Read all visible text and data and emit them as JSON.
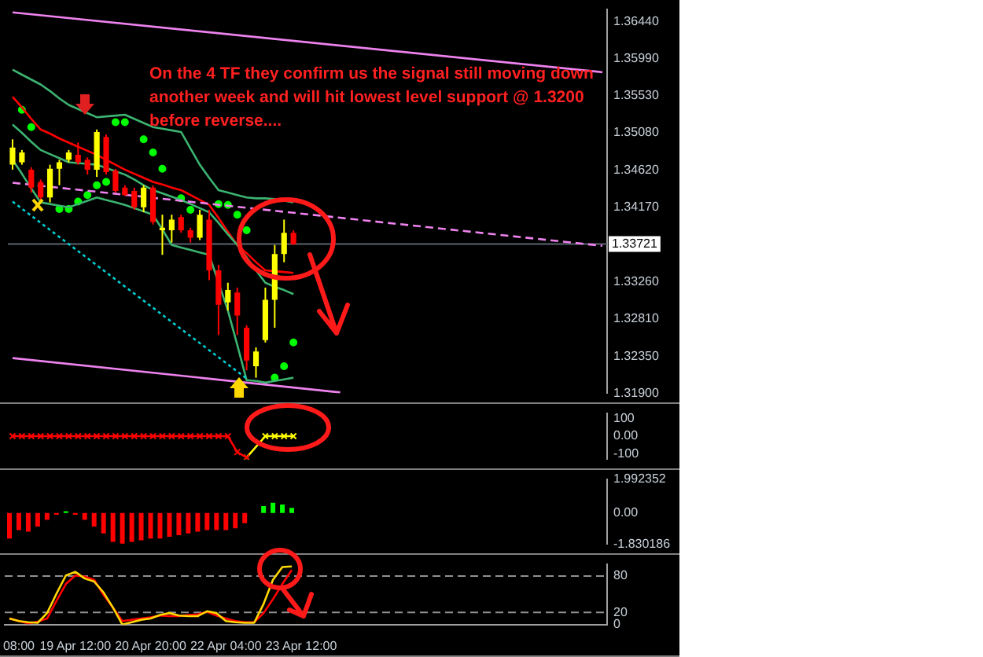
{
  "chart_data": [
    {
      "type": "candlestick",
      "categories": [
        null,
        null,
        null,
        null,
        null,
        null,
        null,
        null,
        null,
        null,
        null,
        null,
        null,
        null,
        null,
        null,
        null,
        null,
        null,
        null,
        null,
        null,
        null,
        null,
        null,
        null,
        null,
        null,
        null,
        null,
        null,
        null,
        null,
        null,
        null,
        null,
        null,
        null,
        null,
        null,
        null,
        null,
        null,
        null,
        null,
        null,
        null,
        null,
        null,
        null,
        null,
        null,
        null,
        null,
        null,
        null,
        null,
        null,
        null,
        null,
        null,
        null,
        null,
        null
      ],
      "ohlc": [
        [
          1.3469,
          1.35,
          1.3463,
          1.349
        ],
        [
          1.3472,
          1.3487,
          1.3469,
          1.3484
        ],
        [
          1.3463,
          1.3466,
          1.3435,
          1.3441
        ],
        [
          1.3448,
          1.3451,
          1.3426,
          1.3429
        ],
        [
          1.3429,
          1.3469,
          1.3423,
          1.3464
        ],
        [
          1.3464,
          1.3475,
          1.3444,
          1.3472
        ],
        [
          1.3475,
          1.3487,
          1.3472,
          1.3484
        ],
        [
          1.3481,
          1.3496,
          1.3469,
          1.3472
        ],
        [
          1.3475,
          1.3478,
          1.3457,
          1.3463
        ],
        [
          1.3463,
          1.3512,
          1.3454,
          1.3509
        ],
        [
          1.3503,
          1.3506,
          1.3457,
          1.346
        ],
        [
          1.3462,
          1.3464,
          1.3435,
          1.3437
        ],
        [
          1.3441,
          1.3444,
          1.3431,
          1.3432
        ],
        [
          1.3437,
          1.3441,
          1.3414,
          1.3417
        ],
        [
          1.3417,
          1.3444,
          1.3411,
          1.3441
        ],
        [
          1.3441,
          1.3444,
          1.3396,
          1.3399
        ],
        [
          1.3389,
          1.3408,
          1.3359,
          1.3392
        ],
        [
          1.3389,
          1.3408,
          1.3374,
          1.3402
        ],
        [
          1.3405,
          1.3408,
          1.3386,
          1.3389
        ],
        [
          1.3389,
          1.3392,
          1.3374,
          1.338
        ],
        [
          1.338,
          1.3414,
          1.3377,
          1.3408
        ],
        [
          1.3402,
          1.3414,
          1.3328,
          1.334
        ],
        [
          1.334,
          1.3347,
          1.3261,
          1.3298
        ],
        [
          1.3301,
          1.3325,
          1.3291,
          1.3316
        ],
        [
          1.3313,
          1.3319,
          1.3261,
          1.3285
        ],
        [
          1.327,
          1.3273,
          1.3218,
          1.323
        ],
        [
          1.3223,
          1.3246,
          1.3209,
          1.3241
        ],
        [
          1.3255,
          1.3319,
          1.3252,
          1.3304
        ],
        [
          1.3304,
          1.3371,
          1.327,
          1.336
        ],
        [
          1.336,
          1.3402,
          1.335,
          1.3386
        ],
        [
          1.3386,
          1.3389,
          1.3371,
          1.3372
        ],
        null,
        null,
        null,
        null,
        null,
        null,
        null,
        null,
        null,
        null,
        null,
        null,
        null,
        null,
        null,
        null,
        null,
        null,
        null,
        null,
        null,
        null,
        null,
        null,
        null,
        null,
        null,
        null,
        null,
        null,
        null,
        null,
        null
      ],
      "colors": [
        "#ffff00",
        "#ffff00",
        "#ff0000",
        "#ff0000",
        "#ffff00",
        "#ffff00",
        "#ffff00",
        "#ff0000",
        "#ff0000",
        "#ffff00",
        "#ff0000",
        "#ff0000",
        "#ff0000",
        "#ff0000",
        "#ffff00",
        "#ff0000",
        "#ffff00",
        "#ffff00",
        "#ff0000",
        "#ff0000",
        "#ffff00",
        "#ff0000",
        "#ff0000",
        "#ffff00",
        "#ff0000",
        "#ff0000",
        "#ffff00",
        "#ffff00",
        "#ffff00",
        "#ffff00",
        "#ff0000",
        null,
        null,
        null,
        null,
        null,
        null,
        null,
        null,
        null,
        null,
        null,
        null,
        null,
        null,
        null,
        null,
        null,
        null,
        null,
        null,
        null,
        null,
        null,
        null,
        null,
        null,
        null,
        null,
        null,
        null,
        null,
        null,
        null
      ],
      "series": [
        {
          "type": "line",
          "color": "#ee82ee",
          "values": [
            1.3655,
            null,
            null,
            null,
            null,
            null,
            null,
            null,
            null,
            null,
            null,
            null,
            null,
            null,
            null,
            null,
            null,
            null,
            null,
            null,
            null,
            null,
            null,
            null,
            null,
            null,
            null,
            null,
            null,
            null,
            null,
            null,
            null,
            null,
            null,
            null,
            null,
            null,
            null,
            null,
            null,
            null,
            null,
            null,
            null,
            null,
            null,
            null,
            null,
            null,
            null,
            null,
            null,
            null,
            null,
            null,
            null,
            null,
            null,
            null,
            null,
            null,
            null,
            1.3582
          ]
        },
        {
          "type": "line",
          "color": "#ee82ee",
          "values": [
            1.3233,
            null,
            null,
            null,
            null,
            null,
            null,
            null,
            null,
            null,
            null,
            null,
            null,
            null,
            null,
            null,
            null,
            null,
            null,
            null,
            null,
            null,
            null,
            null,
            null,
            null,
            null,
            null,
            null,
            null,
            null,
            null,
            null,
            null,
            null,
            1.3191,
            null,
            null,
            null,
            null,
            null,
            null,
            null,
            null,
            null,
            null,
            null,
            null,
            null,
            null,
            null,
            null,
            null,
            null,
            null,
            null,
            null,
            null,
            null,
            null,
            null,
            null,
            null,
            null
          ]
        },
        {
          "type": "line",
          "color": "#ee82ee",
          "line_style": "dashed",
          "values": [
            1.3447,
            null,
            null,
            null,
            null,
            null,
            null,
            null,
            null,
            null,
            null,
            null,
            null,
            null,
            null,
            null,
            null,
            null,
            null,
            null,
            null,
            null,
            null,
            null,
            null,
            null,
            null,
            null,
            null,
            null,
            null,
            null,
            null,
            null,
            null,
            null,
            null,
            null,
            null,
            null,
            null,
            null,
            null,
            null,
            null,
            null,
            null,
            null,
            null,
            null,
            null,
            null,
            null,
            null,
            null,
            null,
            null,
            null,
            null,
            null,
            null,
            null,
            null,
            1.337
          ]
        },
        {
          "type": "line",
          "color": "#00ced1",
          "line_style": "dotted",
          "values": [
            1.3424,
            null,
            null,
            null,
            null,
            null,
            null,
            null,
            null,
            null,
            null,
            null,
            null,
            null,
            null,
            null,
            null,
            null,
            null,
            null,
            null,
            null,
            null,
            null,
            null,
            1.3208,
            null,
            null,
            null,
            null,
            null,
            null,
            null,
            null,
            null,
            null,
            null,
            null,
            null,
            null,
            null,
            null,
            null,
            null,
            null,
            null,
            null,
            null,
            null,
            null,
            null,
            null,
            null,
            null,
            null,
            null,
            null,
            null,
            null,
            null,
            null,
            null,
            null,
            null
          ]
        },
        {
          "type": "line",
          "color": "#3cb371",
          "values": [
            1.3585,
            1.3579,
            1.3573,
            1.3567,
            1.3559,
            1.355,
            1.3542,
            1.3537,
            1.3532,
            1.3527,
            1.3528,
            1.3529,
            1.353,
            1.3525,
            1.352,
            1.3515,
            1.3513,
            1.3511,
            1.3509,
            1.3489,
            1.3469,
            1.3453,
            1.3438,
            1.3435,
            1.3432,
            1.3429,
            1.3428,
            1.3428,
            1.3427,
            1.3425,
            1.3423,
            null,
            null,
            null,
            null,
            null,
            null,
            null,
            null,
            null,
            null,
            null,
            null,
            null,
            null,
            null,
            null,
            null,
            null,
            null,
            null,
            null,
            null,
            null,
            null,
            null,
            null,
            null,
            null,
            null,
            null,
            null,
            null,
            null
          ]
        },
        {
          "type": "line",
          "color": "#3cb371",
          "values": [
            1.3518,
            1.3508,
            1.3497,
            1.3487,
            1.3482,
            1.3477,
            1.3472,
            1.3471,
            1.347,
            1.3469,
            1.3465,
            1.3461,
            1.3457,
            1.3451,
            1.3444,
            1.3438,
            1.3434,
            1.343,
            1.3426,
            1.3421,
            1.3416,
            1.3411,
            1.3398,
            1.3384,
            1.3371,
            1.3356,
            1.334,
            1.3325,
            1.332,
            1.3316,
            1.3311,
            null,
            null,
            null,
            null,
            null,
            null,
            null,
            null,
            null,
            null,
            null,
            null,
            null,
            null,
            null,
            null,
            null,
            null,
            null,
            null,
            null,
            null,
            null,
            null,
            null,
            null,
            null,
            null,
            null,
            null,
            null,
            null,
            null
          ]
        },
        {
          "type": "line",
          "color": "#3cb371",
          "values": [
            1.3475,
            1.3458,
            1.344,
            1.3423,
            1.3421,
            1.3419,
            1.3417,
            1.3421,
            1.3425,
            1.3429,
            1.3426,
            1.3423,
            1.342,
            1.3416,
            1.3412,
            1.3408,
            1.339,
            1.3371,
            1.3368,
            1.3365,
            1.3362,
            1.3359,
            1.3325,
            1.3291,
            1.3249,
            1.3206,
            1.3205,
            1.3203,
            1.3205,
            1.3207,
            1.3209,
            null,
            null,
            null,
            null,
            null,
            null,
            null,
            null,
            null,
            null,
            null,
            null,
            null,
            null,
            null,
            null,
            null,
            null,
            null,
            null,
            null,
            null,
            null,
            null,
            null,
            null,
            null,
            null,
            null,
            null,
            null,
            null,
            null
          ]
        },
        {
          "type": "line",
          "color": "#ff0000",
          "values": [
            1.3552,
            1.3539,
            1.3525,
            1.3512,
            1.3507,
            1.3501,
            1.3496,
            1.3491,
            1.3486,
            1.3481,
            1.3475,
            1.3469,
            1.3463,
            1.3458,
            1.3453,
            1.3448,
            1.3445,
            1.3441,
            1.3438,
            1.3432,
            1.3426,
            1.342,
            1.3404,
            1.3387,
            1.3371,
            1.3361,
            1.335,
            1.334,
            1.3339,
            1.3338,
            1.3337,
            null,
            null,
            null,
            null,
            null,
            null,
            null,
            null,
            null,
            null,
            null,
            null,
            null,
            null,
            null,
            null,
            null,
            null,
            null,
            null,
            null,
            null,
            null,
            null,
            null,
            null,
            null,
            null,
            null,
            null,
            null,
            null,
            null
          ]
        },
        {
          "type": "scatter",
          "color": "#00ff00",
          "marker": "circle",
          "values": [
            null,
            1.3536,
            1.3515,
            null,
            null,
            1.3415,
            1.3415,
            1.3424,
            1.3432,
            1.3444,
            1.3448,
            1.3521,
            1.3521,
            null,
            1.35,
            1.3484,
            1.3464,
            null,
            1.3428,
            1.3414,
            null,
            null,
            1.3421,
            1.342,
            1.3408,
            1.3389,
            null,
            null,
            1.3209,
            1.3223,
            1.3252,
            null,
            null,
            null,
            null,
            null,
            null,
            null,
            null,
            null,
            null,
            null,
            null,
            null,
            null,
            null,
            null,
            null,
            null,
            null,
            null,
            null,
            null,
            null,
            null,
            null,
            null,
            null,
            null,
            null,
            null,
            null,
            null,
            null
          ]
        }
      ],
      "ylim": [
        1.319,
        1.3659
      ],
      "yticks": [
        {
          "value": 1.319,
          "label": "1.31900"
        },
        {
          "value": 1.3235,
          "label": "1.32350"
        },
        {
          "value": 1.3281,
          "label": "1.32810"
        },
        {
          "value": 1.3326,
          "label": "1.33260"
        },
        {
          "value": 1.3417,
          "label": "1.34170"
        },
        {
          "value": 1.3462,
          "label": "1.34620"
        },
        {
          "value": 1.3508,
          "label": "1.35080"
        },
        {
          "value": 1.3553,
          "label": "1.35530"
        },
        {
          "value": 1.3599,
          "label": "1.35990"
        },
        {
          "value": 1.3644,
          "label": "1.36440"
        }
      ],
      "ref_lines": [
        {
          "axis": "y",
          "value": 1.33721,
          "label": "1.33721",
          "color": "#5a6470"
        }
      ],
      "annotations": [
        "On the 4 TF they confirm us the signal still moving down\nanother week and will hit lowest level support @ 1.3200\nbefore reverse...."
      ],
      "tick_labels": "y"
    },
    {
      "type": "line",
      "marker": "cross",
      "categories": [
        null,
        null,
        null,
        null,
        null,
        null,
        null,
        null,
        null,
        null,
        null,
        null,
        null,
        null,
        null,
        null,
        null,
        null,
        null,
        null,
        null,
        null,
        null,
        null,
        null,
        null,
        null,
        null,
        null,
        null,
        null,
        null,
        null,
        null,
        null,
        null,
        null,
        null,
        null,
        null,
        null,
        null,
        null,
        null,
        null,
        null,
        null,
        null,
        null,
        null,
        null,
        null,
        null,
        null,
        null,
        null,
        null,
        null,
        null,
        null,
        null,
        null,
        null,
        null
      ],
      "series": [
        {
          "color": "#ff0000",
          "values": [
            0,
            0,
            0,
            0,
            0,
            0,
            0,
            0,
            0,
            0,
            0,
            0,
            0,
            0,
            0,
            0,
            0,
            0,
            0,
            0,
            0,
            0,
            0,
            0,
            -90,
            -120,
            null,
            null,
            null,
            null,
            null,
            null,
            null,
            null,
            null,
            null,
            null,
            null,
            null,
            null,
            null,
            null,
            null,
            null,
            null,
            null,
            null,
            null,
            null,
            null,
            null,
            null,
            null,
            null,
            null,
            null,
            null,
            null,
            null,
            null,
            null,
            null,
            null,
            null
          ]
        },
        {
          "color": "#ffff00",
          "values": [
            null,
            null,
            null,
            null,
            null,
            null,
            null,
            null,
            null,
            null,
            null,
            null,
            null,
            null,
            null,
            null,
            null,
            null,
            null,
            null,
            null,
            null,
            null,
            null,
            null,
            -120,
            null,
            0,
            0,
            0,
            0,
            null,
            null,
            null,
            null,
            null,
            null,
            null,
            null,
            null,
            null,
            null,
            null,
            null,
            null,
            null,
            null,
            null,
            null,
            null,
            null,
            null,
            null,
            null,
            null,
            null,
            null,
            null,
            null,
            null,
            null,
            null,
            null,
            null
          ]
        }
      ],
      "ylim": [
        -130,
        130
      ],
      "yticks": [
        100,
        {
          "value": 0,
          "label": "0.00"
        },
        -100
      ],
      "tick_labels": "y"
    },
    {
      "type": "bar",
      "categories": [
        null,
        null,
        null,
        null,
        null,
        null,
        null,
        null,
        null,
        null,
        null,
        null,
        null,
        null,
        null,
        null,
        null,
        null,
        null,
        null,
        null,
        null,
        null,
        null,
        null,
        null,
        null,
        null,
        null,
        null,
        null,
        null,
        null,
        null,
        null,
        null,
        null,
        null,
        null,
        null,
        null,
        null,
        null,
        null,
        null,
        null,
        null,
        null,
        null,
        null,
        null,
        null,
        null,
        null,
        null,
        null,
        null,
        null,
        null,
        null,
        null,
        null,
        null,
        null
      ],
      "values": [
        -1.5,
        -1.0,
        -1.1,
        -0.8,
        -0.4,
        -0.1,
        0.1,
        -0.1,
        -0.4,
        -0.8,
        -1.2,
        -1.7,
        -1.8,
        -1.7,
        -1.6,
        -1.5,
        -1.5,
        -1.4,
        -1.3,
        -1.2,
        -1.1,
        -1.0,
        -1.0,
        -1.0,
        -0.9,
        -0.6,
        0.0,
        0.4,
        0.6,
        0.5,
        0.3,
        null,
        null,
        null,
        null,
        null,
        null,
        null,
        null,
        null,
        null,
        null,
        null,
        null,
        null,
        null,
        null,
        null,
        null,
        null,
        null,
        null,
        null,
        null,
        null,
        null,
        null,
        null,
        null,
        null,
        null,
        null,
        null,
        null
      ],
      "colors": [
        "#ff0000",
        "#ff0000",
        "#ff0000",
        "#ff0000",
        "#ff0000",
        "#ff0000",
        "#00ff00",
        "#ff0000",
        "#ff0000",
        "#ff0000",
        "#ff0000",
        "#ff0000",
        "#ff0000",
        "#ff0000",
        "#ff0000",
        "#ff0000",
        "#ff0000",
        "#ff0000",
        "#ff0000",
        "#ff0000",
        "#ff0000",
        "#ff0000",
        "#ff0000",
        "#ff0000",
        "#ff0000",
        "#ff0000",
        "#ff0000",
        "#00ff00",
        "#00ff00",
        "#00ff00",
        "#00ff00",
        null,
        null,
        null,
        null,
        null,
        null,
        null,
        null,
        null,
        null,
        null,
        null,
        null,
        null,
        null,
        null,
        null,
        null,
        null,
        null,
        null,
        null,
        null,
        null,
        null,
        null,
        null,
        null,
        null,
        null,
        null,
        null,
        null
      ],
      "ylim": [
        -1.830186,
        1.992352
      ],
      "yticks": [
        1.992352,
        {
          "value": 0,
          "label": "0.00"
        },
        -1.830186
      ],
      "tick_labels": "y"
    },
    {
      "type": "line",
      "categories": [
        null,
        "08:00",
        null,
        null,
        null,
        null,
        null,
        "19 Apr 12:00",
        null,
        null,
        null,
        null,
        null,
        null,
        null,
        "20 Apr 20:00",
        null,
        null,
        null,
        null,
        null,
        null,
        null,
        "22 Apr 04:00",
        null,
        null,
        null,
        null,
        null,
        null,
        null,
        "23 Apr 12:00",
        null,
        null,
        null,
        null,
        null,
        null,
        null,
        null,
        null,
        null,
        null,
        null,
        null,
        null,
        null,
        null,
        null,
        null,
        null,
        null,
        null,
        null,
        null,
        null,
        null,
        null,
        null,
        null,
        null,
        null,
        null,
        null
      ],
      "series": [
        {
          "color": "#ffd700",
          "values": [
            10,
            6,
            4,
            3,
            19,
            51,
            81,
            87,
            76,
            71,
            53,
            28,
            0,
            4,
            8,
            10,
            16,
            19,
            15,
            14,
            14,
            22,
            19,
            6,
            4,
            3,
            3,
            34,
            74,
            95,
            96,
            null,
            null,
            null,
            null,
            null,
            null,
            null,
            null,
            null,
            null,
            null,
            null,
            null,
            null,
            null,
            null,
            null,
            null,
            null,
            null,
            null,
            null,
            null,
            null,
            null,
            null,
            null,
            null,
            null,
            null,
            null,
            null,
            null
          ]
        },
        {
          "color": "#ff0000",
          "values": [
            10,
            6,
            2,
            5,
            10,
            39,
            67,
            81,
            79,
            74,
            49,
            28,
            6,
            8,
            10,
            12,
            15,
            14,
            14,
            16,
            17,
            21,
            15,
            10,
            6,
            4,
            4,
            19,
            42,
            67,
            90,
            null,
            null,
            null,
            null,
            null,
            null,
            null,
            null,
            null,
            null,
            null,
            null,
            null,
            null,
            null,
            null,
            null,
            null,
            null,
            null,
            null,
            null,
            null,
            null,
            null,
            null,
            null,
            null,
            null,
            null,
            null,
            null,
            null
          ]
        }
      ],
      "ylim": [
        0,
        100
      ],
      "yticks": [
        0,
        20,
        80
      ],
      "ref_lines": [
        {
          "axis": "y",
          "value": 80,
          "color": "#909090",
          "line_style": "dashed"
        },
        {
          "axis": "y",
          "value": 20,
          "color": "#909090",
          "line_style": "dashed"
        }
      ]
    }
  ]
}
